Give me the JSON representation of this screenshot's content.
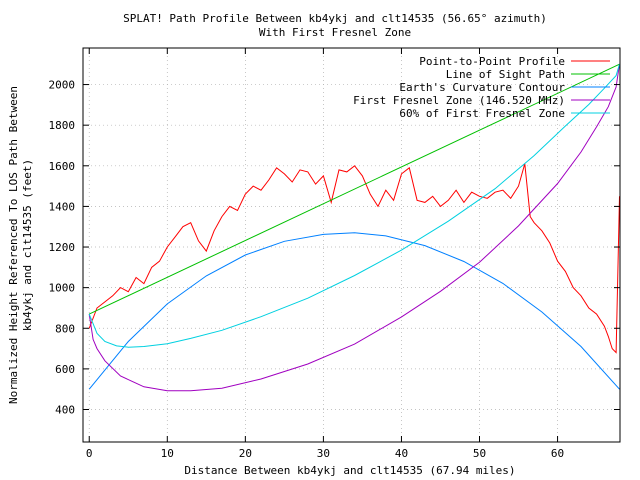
{
  "chart_data": {
    "type": "line",
    "title_line1": "SPLAT! Path Profile Between kb4ykj and clt14535 (56.65° azimuth)",
    "title_line2": "With First Fresnel Zone",
    "xlabel": "Distance Between kb4ykj and clt14535 (67.94 miles)",
    "ylabel_line1": "Normalized Height Referenced To LOS Path Between",
    "ylabel_line2": "kb4ykj and clt14535 (feet)",
    "xlim": [
      -0.8,
      68
    ],
    "ylim": [
      240,
      2180
    ],
    "xticks": [
      0,
      10,
      20,
      30,
      40,
      50,
      60
    ],
    "yticks": [
      400,
      600,
      800,
      1000,
      1200,
      1400,
      1600,
      1800,
      2000
    ],
    "grid": true,
    "legend_position": "top-right",
    "series": [
      {
        "name": "Point-to-Point Profile",
        "color": "#ff0000",
        "x": [
          0,
          1,
          2,
          3,
          4,
          5,
          6,
          7,
          8,
          9,
          10,
          11,
          12,
          13,
          14,
          15,
          16,
          17,
          18,
          19,
          20,
          21,
          22,
          23,
          24,
          25,
          26,
          27,
          28,
          29,
          30,
          31,
          32,
          33,
          34,
          35,
          36,
          37,
          38,
          39,
          40,
          41,
          42,
          43,
          44,
          45,
          46,
          47,
          48,
          49,
          50,
          51,
          52,
          53,
          54,
          55,
          55.8,
          56.5,
          57,
          58,
          59,
          60,
          61,
          62,
          63,
          64,
          65,
          66,
          66.5,
          67,
          67.5,
          67.94
        ],
        "y": [
          800,
          900,
          930,
          960,
          1000,
          980,
          1050,
          1020,
          1100,
          1130,
          1200,
          1250,
          1300,
          1320,
          1230,
          1180,
          1280,
          1350,
          1400,
          1380,
          1460,
          1500,
          1480,
          1530,
          1590,
          1560,
          1520,
          1580,
          1570,
          1510,
          1550,
          1420,
          1580,
          1570,
          1600,
          1550,
          1460,
          1400,
          1480,
          1430,
          1560,
          1590,
          1430,
          1420,
          1450,
          1400,
          1430,
          1480,
          1420,
          1470,
          1450,
          1440,
          1470,
          1480,
          1440,
          1500,
          1610,
          1350,
          1320,
          1280,
          1220,
          1130,
          1080,
          1000,
          960,
          900,
          870,
          810,
          760,
          700,
          680,
          1450
        ]
      },
      {
        "name": "Line of Sight Path",
        "color": "#00c000",
        "x": [
          0,
          67.94
        ],
        "y": [
          870,
          2100
        ]
      },
      {
        "name": "Earth's Curvature Contour",
        "color": "#0080ff",
        "x": [
          0,
          5,
          10,
          15,
          20,
          25,
          30,
          34,
          38,
          43,
          48,
          53,
          58,
          63,
          67.94
        ],
        "y": [
          500,
          735,
          920,
          1058,
          1161,
          1228,
          1262,
          1270,
          1255,
          1207,
          1129,
          1021,
          880,
          710,
          500
        ]
      },
      {
        "name": "First Fresnel Zone (146.520 MHz)",
        "color": "#a000c0",
        "x": [
          0,
          0.5,
          1,
          2,
          4,
          7,
          10,
          13,
          17,
          22,
          28,
          34,
          40,
          45,
          50,
          55,
          60,
          63,
          65,
          66.5,
          67.5,
          67.94
        ],
        "y": [
          870,
          745,
          700,
          640,
          565,
          512,
          492,
          492,
          505,
          550,
          624,
          722,
          856,
          982,
          1125,
          1304,
          1513,
          1668,
          1792,
          1891,
          1988,
          2100
        ]
      },
      {
        "name": "60% of First Fresnel Zone",
        "color": "#00d0e0",
        "x": [
          0,
          1,
          2,
          3.5,
          5,
          7,
          10,
          13,
          17,
          22,
          28,
          34,
          40,
          46,
          52,
          57,
          61,
          64,
          66,
          67.5,
          67.94
        ],
        "y": [
          870,
          775,
          735,
          713,
          707,
          710,
          724,
          750,
          790,
          857,
          948,
          1060,
          1185,
          1327,
          1487,
          1650,
          1796,
          1902,
          1982,
          2044,
          2100
        ]
      }
    ]
  }
}
